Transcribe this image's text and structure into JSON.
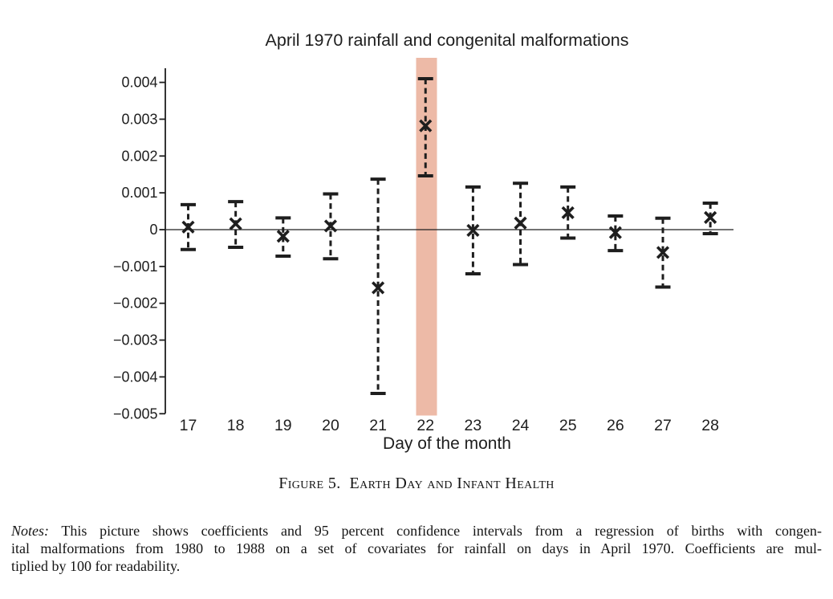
{
  "chart_data": {
    "type": "scatter",
    "subtype": "coefficient-plot-with-95ci-error-bars",
    "title": "April 1970 rainfall and congenital malformations",
    "xlabel": "Day of the month",
    "days": [
      17,
      18,
      19,
      20,
      21,
      22,
      23,
      24,
      25,
      26,
      27,
      28
    ],
    "series": [
      {
        "name": "coefficient",
        "values": [
          7e-05,
          0.00016,
          -0.00018,
          0.0001,
          -0.00158,
          0.00282,
          -2e-05,
          0.00018,
          0.00046,
          -8e-05,
          -0.00062,
          0.00033
        ]
      },
      {
        "name": "ci_lower",
        "values": [
          -0.00054,
          -0.00048,
          -0.00072,
          -0.00079,
          -0.00445,
          0.00146,
          -0.0012,
          -0.00095,
          -0.00023,
          -0.00057,
          -0.00156,
          -0.00011
        ]
      },
      {
        "name": "ci_upper",
        "values": [
          0.00068,
          0.00076,
          0.00032,
          0.00097,
          0.00137,
          0.0041,
          0.00116,
          0.00126,
          0.00116,
          0.00037,
          0.00031,
          0.00072
        ]
      }
    ],
    "ylim": [
      -0.005,
      0.0044
    ],
    "yticks": [
      0.004,
      0.003,
      0.002,
      0.001,
      0,
      -0.001,
      -0.002,
      -0.003,
      -0.004,
      -0.005
    ],
    "ytick_labels": [
      "0.004",
      "0.003",
      "0.002",
      "0.001",
      "0",
      "−0.001",
      "−0.002",
      "−0.003",
      "−0.004",
      "−0.005"
    ],
    "grid": false,
    "zero_line": true,
    "legend": "none",
    "marker": "x",
    "error_bar_style": "dashed-with-caps",
    "highlighted_day": 22,
    "colors": {
      "ink": "#1e1e1e",
      "highlight_band": "#edbaa7"
    }
  },
  "caption": {
    "text": "Figure 5.  Earth Day and Infant Health"
  },
  "notes": {
    "label": "Notes:",
    "line1_rest": " This picture shows coefficients and 95 percent confidence intervals from a regression of births with congen-",
    "line2": "ital malformations from 1980 to 1988 on a set of covariates for rainfall on days in April 1970. Coefficients are mul-",
    "line3": "tiplied by 100 for readability."
  }
}
